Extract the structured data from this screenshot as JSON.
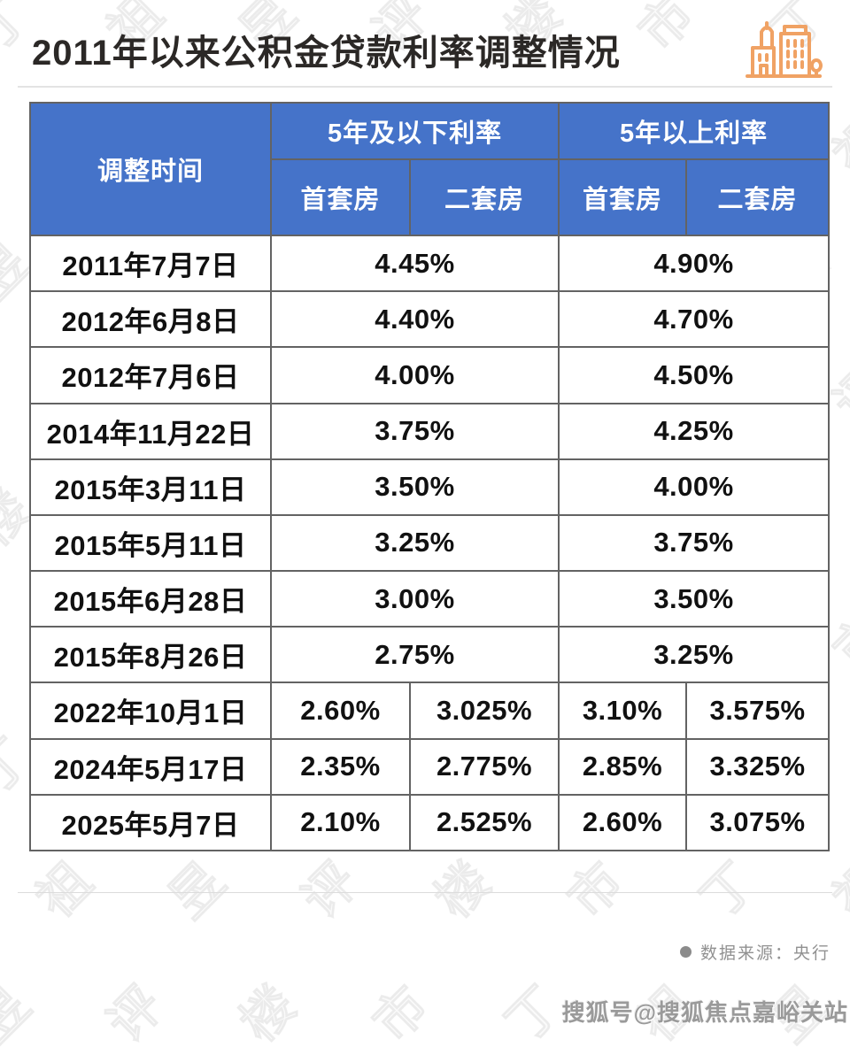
{
  "title": "2011年以来公积金贷款利率调整情况",
  "background_watermark_text": "丁祖昱评楼市",
  "colors": {
    "header_blue": "#4573c9",
    "icon_orange": "#f0a264",
    "border_gray": "#636363"
  },
  "chart_data": {
    "type": "table",
    "title": "2011年以来公积金贷款利率调整情况",
    "column_groups": [
      {
        "label": "调整时间",
        "span": 1
      },
      {
        "label": "5年及以下利率",
        "span": 2,
        "children": [
          "首套房",
          "二套房"
        ]
      },
      {
        "label": "5年以上利率",
        "span": 2,
        "children": [
          "首套房",
          "二套房"
        ]
      }
    ],
    "rows": [
      {
        "date": "2011年7月7日",
        "cells": [
          {
            "text": "4.45%",
            "span": 2
          },
          {
            "text": "4.90%",
            "span": 2
          }
        ]
      },
      {
        "date": "2012年6月8日",
        "cells": [
          {
            "text": "4.40%",
            "span": 2
          },
          {
            "text": "4.70%",
            "span": 2
          }
        ]
      },
      {
        "date": "2012年7月6日",
        "cells": [
          {
            "text": "4.00%",
            "span": 2
          },
          {
            "text": "4.50%",
            "span": 2
          }
        ]
      },
      {
        "date": "2014年11月22日",
        "cells": [
          {
            "text": "3.75%",
            "span": 2
          },
          {
            "text": "4.25%",
            "span": 2
          }
        ]
      },
      {
        "date": "2015年3月11日",
        "cells": [
          {
            "text": "3.50%",
            "span": 2
          },
          {
            "text": "4.00%",
            "span": 2
          }
        ]
      },
      {
        "date": "2015年5月11日",
        "cells": [
          {
            "text": "3.25%",
            "span": 2
          },
          {
            "text": "3.75%",
            "span": 2
          }
        ]
      },
      {
        "date": "2015年6月28日",
        "cells": [
          {
            "text": "3.00%",
            "span": 2
          },
          {
            "text": "3.50%",
            "span": 2
          }
        ]
      },
      {
        "date": "2015年8月26日",
        "cells": [
          {
            "text": "2.75%",
            "span": 2
          },
          {
            "text": "3.25%",
            "span": 2
          }
        ]
      },
      {
        "date": "2022年10月1日",
        "cells": [
          {
            "text": "2.60%",
            "span": 1
          },
          {
            "text": "3.025%",
            "span": 1
          },
          {
            "text": "3.10%",
            "span": 1
          },
          {
            "text": "3.575%",
            "span": 1
          }
        ]
      },
      {
        "date": "2024年5月17日",
        "cells": [
          {
            "text": "2.35%",
            "span": 1
          },
          {
            "text": "2.775%",
            "span": 1
          },
          {
            "text": "2.85%",
            "span": 1
          },
          {
            "text": "3.325%",
            "span": 1
          }
        ]
      },
      {
        "date": "2025年5月7日",
        "cells": [
          {
            "text": "2.10%",
            "span": 1
          },
          {
            "text": "2.525%",
            "span": 1
          },
          {
            "text": "2.60%",
            "span": 1
          },
          {
            "text": "3.075%",
            "span": 1
          }
        ]
      }
    ],
    "source": "数据来源：央行"
  },
  "footer": {
    "source_label": "数据来源：央行",
    "account_watermark": "搜狐号@搜狐焦点嘉峪关站"
  }
}
